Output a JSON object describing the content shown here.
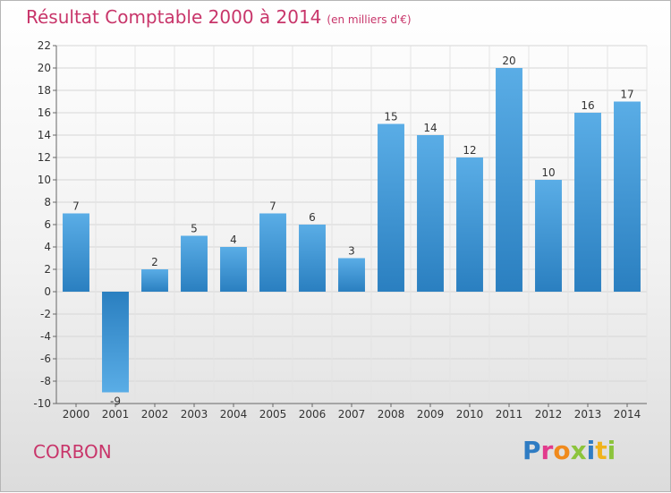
{
  "header": {
    "title": "Résultat Comptable 2000 à 2014",
    "subtitle": "(en milliers d'€)"
  },
  "footer": {
    "place_name": "CORBON",
    "logo_text": "Proxiti"
  },
  "colors": {
    "title": "#c8356a",
    "bar_light": "#5aade6",
    "bar_dark": "#2a7fc0",
    "logo_letters": [
      "#2f7cc3",
      "#e23b8c",
      "#f08a1c",
      "#8cc43c",
      "#2f7cc3",
      "#f0b31c",
      "#8cc43c"
    ]
  },
  "chart_data": {
    "type": "bar",
    "categories": [
      "2000",
      "2001",
      "2002",
      "2003",
      "2004",
      "2005",
      "2006",
      "2007",
      "2008",
      "2009",
      "2010",
      "2011",
      "2012",
      "2013",
      "2014"
    ],
    "values": [
      7,
      -9,
      2,
      5,
      4,
      7,
      6,
      3,
      15,
      14,
      12,
      20,
      10,
      16,
      17
    ],
    "ylim": [
      -10,
      22
    ],
    "yticks": [
      -10,
      -8,
      -6,
      -4,
      -2,
      0,
      2,
      4,
      6,
      8,
      10,
      12,
      14,
      16,
      18,
      20,
      22
    ],
    "grid": true,
    "data_labels": true
  }
}
